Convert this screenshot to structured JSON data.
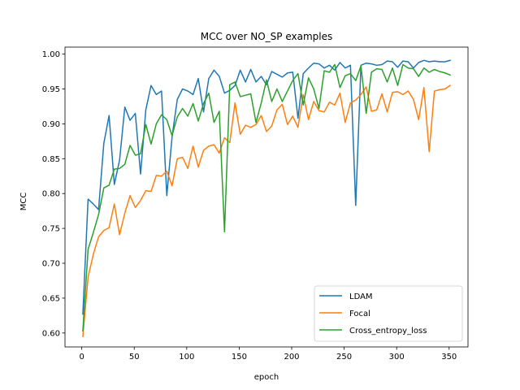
{
  "chart_data": {
    "type": "line",
    "title": "MCC over NO_SP examples",
    "xlabel": "epoch",
    "ylabel": "MCC",
    "xlim": [
      -16,
      368
    ],
    "ylim": [
      0.58,
      1.01
    ],
    "xticks": [
      0,
      50,
      100,
      150,
      200,
      250,
      300,
      350
    ],
    "yticks": [
      0.6,
      0.65,
      0.7,
      0.75,
      0.8,
      0.85,
      0.9,
      0.95,
      1.0
    ],
    "grid": false,
    "legend_position": "lower-right",
    "x": [
      1,
      6,
      11,
      16,
      21,
      26,
      31,
      36,
      41,
      46,
      51,
      56,
      61,
      66,
      71,
      76,
      81,
      86,
      91,
      96,
      101,
      106,
      111,
      116,
      121,
      126,
      131,
      136,
      141,
      146,
      151,
      156,
      161,
      166,
      171,
      176,
      181,
      186,
      191,
      196,
      201,
      206,
      211,
      216,
      221,
      226,
      231,
      236,
      241,
      246,
      251,
      256,
      261,
      266,
      271,
      276,
      281,
      286,
      291,
      296,
      301,
      306,
      311,
      316,
      321,
      326,
      331,
      336,
      341,
      346,
      351
    ],
    "series": [
      {
        "name": "LDAM",
        "color": "#1f77b4",
        "values": [
          0.627,
          0.792,
          0.785,
          0.777,
          0.872,
          0.912,
          0.813,
          0.848,
          0.924,
          0.905,
          0.915,
          0.828,
          0.92,
          0.955,
          0.942,
          0.947,
          0.797,
          0.881,
          0.935,
          0.95,
          0.947,
          0.942,
          0.965,
          0.917,
          0.965,
          0.977,
          0.968,
          0.944,
          0.948,
          0.955,
          0.977,
          0.96,
          0.978,
          0.96,
          0.968,
          0.956,
          0.975,
          0.971,
          0.967,
          0.973,
          0.974,
          0.908,
          0.972,
          0.98,
          0.987,
          0.986,
          0.98,
          0.984,
          0.977,
          0.988,
          0.98,
          0.984,
          0.783,
          0.984,
          0.987,
          0.986,
          0.984,
          0.985,
          0.99,
          0.989,
          0.981,
          0.99,
          0.989,
          0.98,
          0.988,
          0.991,
          0.989,
          0.99,
          0.989,
          0.989,
          0.991
        ]
      },
      {
        "name": "Focal",
        "color": "#ff7f0e",
        "values": [
          0.595,
          0.68,
          0.713,
          0.738,
          0.747,
          0.751,
          0.785,
          0.741,
          0.772,
          0.797,
          0.78,
          0.79,
          0.804,
          0.803,
          0.826,
          0.825,
          0.832,
          0.811,
          0.85,
          0.852,
          0.836,
          0.868,
          0.838,
          0.862,
          0.868,
          0.87,
          0.858,
          0.88,
          0.873,
          0.93,
          0.885,
          0.898,
          0.895,
          0.899,
          0.912,
          0.889,
          0.897,
          0.92,
          0.928,
          0.899,
          0.911,
          0.895,
          0.942,
          0.906,
          0.932,
          0.919,
          0.917,
          0.931,
          0.927,
          0.944,
          0.902,
          0.93,
          0.934,
          0.942,
          0.953,
          0.918,
          0.92,
          0.943,
          0.917,
          0.945,
          0.946,
          0.942,
          0.947,
          0.935,
          0.906,
          0.952,
          0.86,
          0.947,
          0.949,
          0.95,
          0.955
        ]
      },
      {
        "name": "Cross_entropy_loss",
        "color": "#2ca02c",
        "values": [
          0.603,
          0.72,
          0.744,
          0.77,
          0.808,
          0.812,
          0.835,
          0.836,
          0.842,
          0.869,
          0.855,
          0.857,
          0.899,
          0.871,
          0.9,
          0.913,
          0.906,
          0.883,
          0.91,
          0.922,
          0.911,
          0.929,
          0.904,
          0.929,
          0.944,
          0.902,
          0.918,
          0.745,
          0.956,
          0.96,
          0.939,
          0.941,
          0.943,
          0.902,
          0.93,
          0.963,
          0.932,
          0.95,
          0.932,
          0.947,
          0.962,
          0.972,
          0.927,
          0.966,
          0.95,
          0.922,
          0.976,
          0.974,
          0.985,
          0.952,
          0.969,
          0.972,
          0.962,
          0.983,
          0.915,
          0.974,
          0.979,
          0.978,
          0.96,
          0.98,
          0.955,
          0.985,
          0.98,
          0.979,
          0.968,
          0.98,
          0.974,
          0.978,
          0.975,
          0.973,
          0.97
        ]
      }
    ]
  }
}
